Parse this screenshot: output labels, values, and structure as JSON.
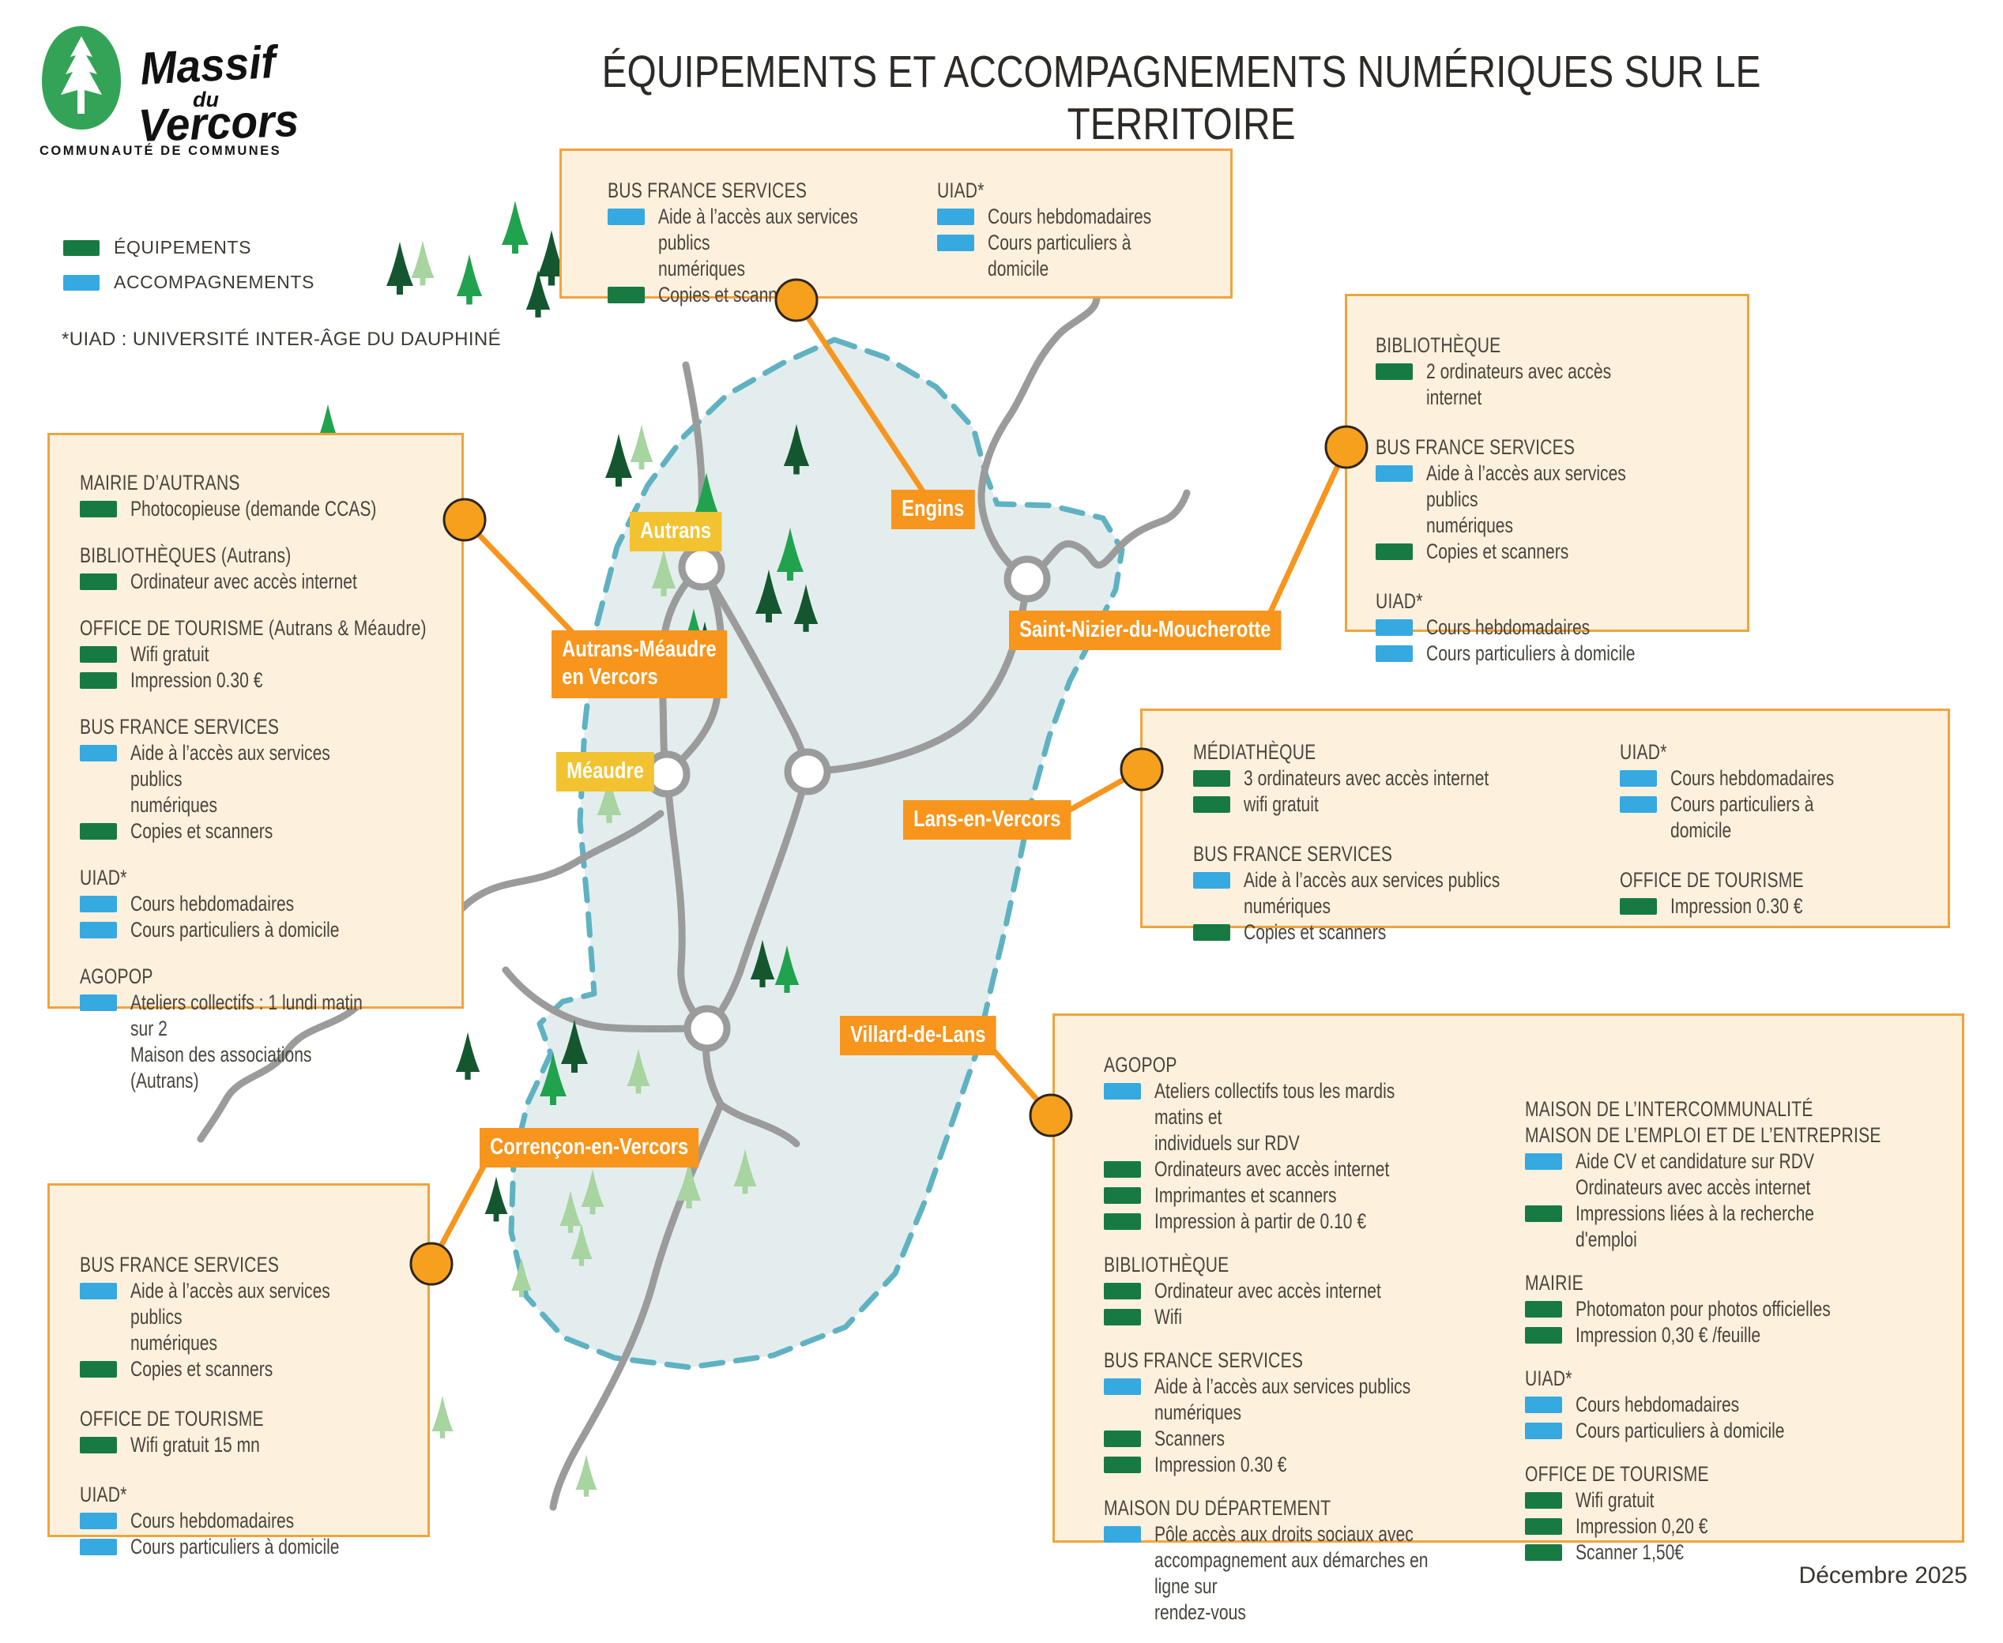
{
  "meta": {
    "title": "ÉQUIPEMENTS ET ACCOMPAGNEMENTS NUMÉRIQUES SUR LE TERRITOIRE",
    "date": "Décembre 2025"
  },
  "logo": {
    "name_line1": "Massif",
    "name_line2": "du",
    "name_line3": "Vercors",
    "subtitle": "COMMUNAUTÉ DE COMMUNES"
  },
  "legend": {
    "equipements": "ÉQUIPEMENTS",
    "accompagnements": "ACCOMPAGNEMENTS",
    "footnote": "*UIAD : UNIVERSITÉ INTER-ÂGE DU DAUPHINÉ"
  },
  "colors": {
    "equipment": "#177a43",
    "support": "#36a9e1",
    "orange": "#f7951d",
    "yellow": "#f2c230",
    "box_bg": "#fdf1dd",
    "box_border": "#f0a43c",
    "map_fill": "#e3edee",
    "map_border": "#5fb2c1",
    "road": "#9b9b9b",
    "tree_dark": "#14572f",
    "tree_mid": "#21a24f",
    "tree_light": "#a7d4a0"
  },
  "map_labels": [
    {
      "id": "autrans",
      "text": "Autrans",
      "style": "yellow"
    },
    {
      "id": "engins",
      "text": "Engins",
      "style": "orange"
    },
    {
      "id": "autrans-meaudre",
      "text": "Autrans-Méaudre\nen Vercors",
      "style": "orange"
    },
    {
      "id": "meaudre",
      "text": "Méaudre",
      "style": "yellow"
    },
    {
      "id": "saint-nizier",
      "text": "Saint-Nizier-du-Moucherotte",
      "style": "orange"
    },
    {
      "id": "lans",
      "text": "Lans-en-Vercors",
      "style": "orange"
    },
    {
      "id": "villard",
      "text": "Villard-de-Lans",
      "style": "orange"
    },
    {
      "id": "correncon",
      "text": "Corrençon-en-Vercors",
      "style": "orange"
    }
  ],
  "boxes": [
    {
      "id": "engins",
      "columns": [
        [
          {
            "heading": "BUS FRANCE SERVICES",
            "items": [
              {
                "marker": "support",
                "text": "Aide à l’accès aux services publics\nnumériques"
              },
              {
                "marker": "equipment",
                "text": "Copies et scanners"
              }
            ]
          }
        ],
        [
          {
            "heading": "UIAD*",
            "items": [
              {
                "marker": "support",
                "text": "Cours hebdomadaires"
              },
              {
                "marker": "support",
                "text": "Cours particuliers à domicile"
              }
            ]
          }
        ]
      ]
    },
    {
      "id": "saint-nizier",
      "columns": [
        [
          {
            "heading": "BIBLIOTHÈQUE",
            "items": [
              {
                "marker": "equipment",
                "text": "2 ordinateurs avec accès internet"
              }
            ]
          },
          {
            "heading": "BUS FRANCE SERVICES",
            "items": [
              {
                "marker": "support",
                "text": "Aide à l’accès aux services publics\nnumériques"
              },
              {
                "marker": "equipment",
                "text": "Copies et scanners"
              }
            ]
          },
          {
            "heading": "UIAD*",
            "items": [
              {
                "marker": "support",
                "text": "Cours hebdomadaires"
              },
              {
                "marker": "support",
                "text": "Cours particuliers à domicile"
              }
            ]
          }
        ]
      ]
    },
    {
      "id": "autrans-meaudre",
      "columns": [
        [
          {
            "heading": "MAIRIE D’AUTRANS",
            "items": [
              {
                "marker": "equipment",
                "text": "Photocopieuse (demande CCAS)"
              }
            ]
          },
          {
            "heading": "BIBLIOTHÈQUES (Autrans)",
            "items": [
              {
                "marker": "equipment",
                "text": "Ordinateur avec accès internet"
              }
            ]
          },
          {
            "heading": "OFFICE DE TOURISME (Autrans & Méaudre)",
            "items": [
              {
                "marker": "equipment",
                "text": "Wifi gratuit"
              },
              {
                "marker": "equipment",
                "text": "Impression 0.30 €"
              }
            ]
          },
          {
            "heading": "BUS FRANCE SERVICES",
            "items": [
              {
                "marker": "support",
                "text": "Aide à l’accès aux services publics\nnumériques"
              },
              {
                "marker": "equipment",
                "text": "Copies et scanners"
              }
            ]
          },
          {
            "heading": "UIAD*",
            "items": [
              {
                "marker": "support",
                "text": "Cours hebdomadaires"
              },
              {
                "marker": "support",
                "text": "Cours particuliers à domicile"
              }
            ]
          },
          {
            "heading": "AGOPOP",
            "items": [
              {
                "marker": "support",
                "text": "Ateliers collectifs : 1 lundi matin sur 2\nMaison des associations (Autrans)"
              }
            ]
          }
        ]
      ]
    },
    {
      "id": "lans",
      "columns": [
        [
          {
            "heading": "MÉDIATHÈQUE",
            "items": [
              {
                "marker": "equipment",
                "text": "3 ordinateurs avec accès internet"
              },
              {
                "marker": "equipment",
                "text": "wifi gratuit"
              }
            ]
          },
          {
            "heading": "BUS FRANCE SERVICES",
            "items": [
              {
                "marker": "support",
                "text": "Aide à l’accès aux services publics\nnumériques"
              },
              {
                "marker": "equipment",
                "text": "Copies et scanners"
              }
            ]
          }
        ],
        [
          {
            "heading": "UIAD*",
            "items": [
              {
                "marker": "support",
                "text": "Cours hebdomadaires"
              },
              {
                "marker": "support",
                "text": "Cours particuliers à domicile"
              }
            ]
          },
          {
            "heading": "OFFICE DE TOURISME",
            "items": [
              {
                "marker": "equipment",
                "text": "Impression 0.30 €"
              }
            ]
          }
        ]
      ]
    },
    {
      "id": "correncon",
      "columns": [
        [
          {
            "heading": "BUS FRANCE SERVICES",
            "items": [
              {
                "marker": "support",
                "text": "Aide à l’accès aux services publics\nnumériques"
              },
              {
                "marker": "equipment",
                "text": "Copies et scanners"
              }
            ]
          },
          {
            "heading": "OFFICE DE TOURISME",
            "items": [
              {
                "marker": "equipment",
                "text": "Wifi gratuit 15 mn"
              }
            ]
          },
          {
            "heading": "UIAD*",
            "items": [
              {
                "marker": "support",
                "text": "Cours hebdomadaires"
              },
              {
                "marker": "support",
                "text": "Cours particuliers à domicile"
              }
            ]
          }
        ]
      ]
    },
    {
      "id": "villard",
      "columns": [
        [
          {
            "heading": "AGOPOP",
            "items": [
              {
                "marker": "support",
                "text": "Ateliers collectifs tous les mardis matins et\nindividuels sur RDV"
              },
              {
                "marker": "equipment",
                "text": "Ordinateurs avec accès internet"
              },
              {
                "marker": "equipment",
                "text": "Imprimantes et scanners"
              },
              {
                "marker": "equipment",
                "text": "Impression à partir de 0.10 €"
              }
            ]
          },
          {
            "heading": "BIBLIOTHÈQUE",
            "items": [
              {
                "marker": "equipment",
                "text": "Ordinateur avec accès internet"
              },
              {
                "marker": "equipment",
                "text": "Wifi"
              }
            ]
          },
          {
            "heading": "BUS FRANCE SERVICES",
            "items": [
              {
                "marker": "support",
                "text": "Aide à l’accès aux services publics numériques"
              },
              {
                "marker": "equipment",
                "text": "Scanners"
              },
              {
                "marker": "equipment",
                "text": "Impression 0.30 €"
              }
            ]
          },
          {
            "heading": "MAISON DU DÉPARTEMENT",
            "items": [
              {
                "marker": "support",
                "text": "Pôle accès aux droits sociaux avec\naccompagnement aux démarches en ligne sur\nrendez-vous"
              }
            ]
          }
        ],
        [
          {
            "heading": "MAISON DE L’INTERCOMMUNALITÉ\nMAISON DE L’EMPLOI ET DE L’ENTREPRISE",
            "items": [
              {
                "marker": "support",
                "text": "Aide CV et candidature sur RDV"
              },
              {
                "marker": "none",
                "text": "Ordinateurs avec accès internet"
              },
              {
                "marker": "equipment",
                "text": "Impressions liées à la recherche d'emploi"
              }
            ]
          },
          {
            "heading": "MAIRIE",
            "items": [
              {
                "marker": "equipment",
                "text": "Photomaton pour photos officielles"
              },
              {
                "marker": "equipment",
                "text": "Impression 0,30 € /feuille"
              }
            ]
          },
          {
            "heading": "UIAD*",
            "items": [
              {
                "marker": "support",
                "text": "Cours hebdomadaires"
              },
              {
                "marker": "support",
                "text": "Cours particuliers à domicile"
              }
            ]
          },
          {
            "heading": "OFFICE DE TOURISME",
            "items": [
              {
                "marker": "equipment",
                "text": "Wifi gratuit"
              },
              {
                "marker": "equipment",
                "text": "Impression 0,20 €"
              },
              {
                "marker": "equipment",
                "text": "Scanner 1,50€"
              }
            ]
          }
        ]
      ]
    }
  ]
}
